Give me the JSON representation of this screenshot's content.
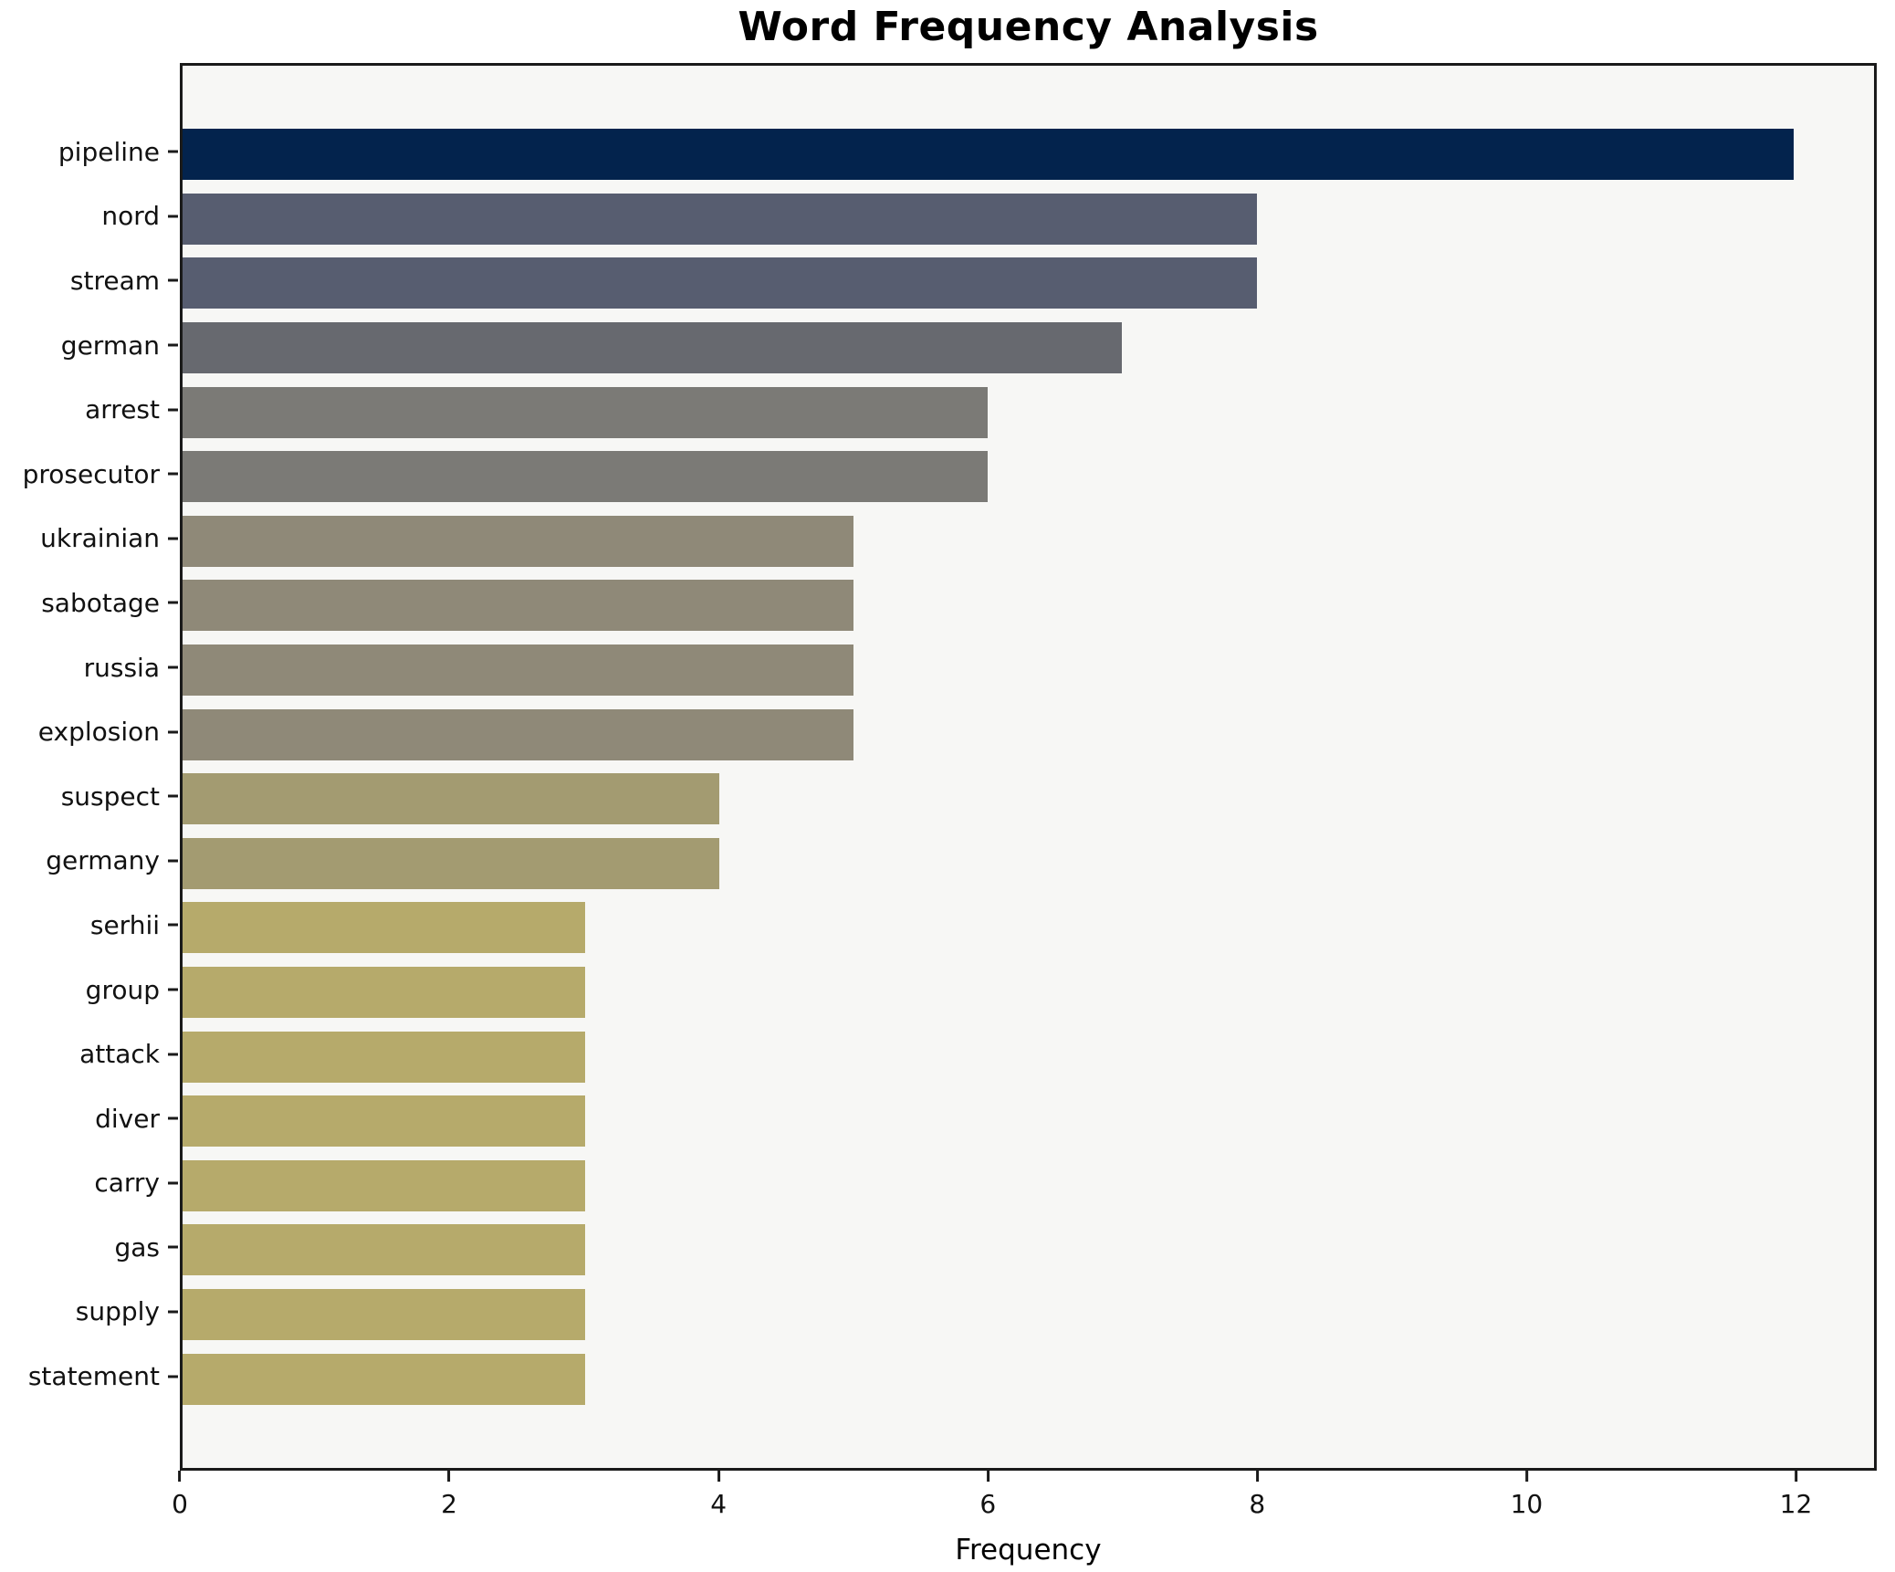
{
  "chart_data": {
    "type": "bar",
    "orientation": "horizontal",
    "title": "Word Frequency Analysis",
    "xlabel": "Frequency",
    "ylabel": "",
    "categories": [
      "pipeline",
      "nord",
      "stream",
      "german",
      "arrest",
      "prosecutor",
      "ukrainian",
      "sabotage",
      "russia",
      "explosion",
      "suspect",
      "germany",
      "serhii",
      "group",
      "attack",
      "diver",
      "carry",
      "gas",
      "supply",
      "statement"
    ],
    "values": [
      12,
      8,
      8,
      7,
      6,
      6,
      5,
      5,
      5,
      5,
      4,
      4,
      3,
      3,
      3,
      3,
      3,
      3,
      3,
      3
    ],
    "bar_colors": [
      "#03234D",
      "#575D70",
      "#575D70",
      "#67696F",
      "#7B7A76",
      "#7B7A76",
      "#8F8978",
      "#8F8978",
      "#8F8978",
      "#8F8978",
      "#A39B71",
      "#A39B71",
      "#B6AA6B",
      "#B6AA6B",
      "#B6AA6B",
      "#B6AA6B",
      "#B6AA6B",
      "#B6AA6B",
      "#B6AA6B",
      "#B6AA6B"
    ],
    "xlim": [
      0,
      12.6
    ],
    "x_ticks": [
      0,
      2,
      4,
      6,
      8,
      10,
      12
    ],
    "x_tick_labels": [
      "0",
      "2",
      "4",
      "6",
      "8",
      "10",
      "12"
    ],
    "grid": false,
    "legend": null,
    "colors": {
      "plot_background": "#F7F7F5",
      "figure_background": "#FFFFFF",
      "spine": "#1A1A1A",
      "text": "#111111"
    }
  }
}
